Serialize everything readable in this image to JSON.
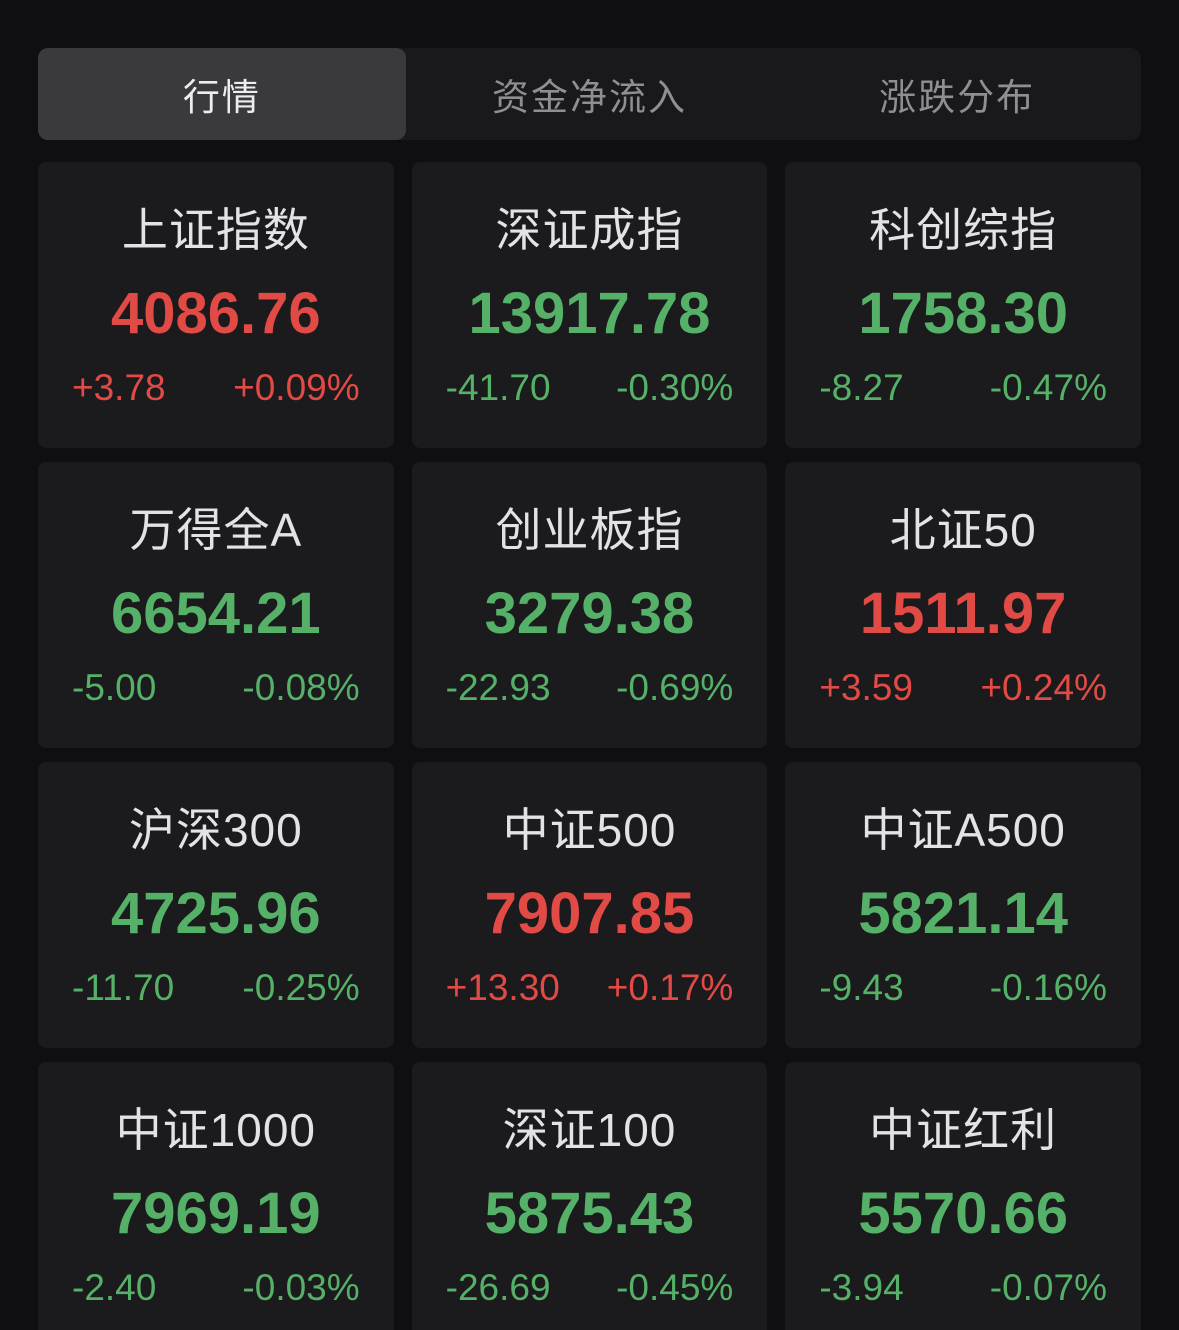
{
  "tabs": [
    {
      "label": "行情",
      "state": "active"
    },
    {
      "label": "资金净流入",
      "state": "inactive"
    },
    {
      "label": "涨跌分布",
      "state": "inactive"
    }
  ],
  "colors": {
    "up": "#e24a45",
    "down": "#56b168",
    "card_background": "#1b1b1d",
    "page_background": "#0f0f11",
    "active_tab_background": "#3a3a3c"
  },
  "cards": [
    {
      "name": "上证指数",
      "value": "4086.76",
      "change": "+3.78",
      "change_pct": "+0.09%",
      "direction": "up"
    },
    {
      "name": "深证成指",
      "value": "13917.78",
      "change": "-41.70",
      "change_pct": "-0.30%",
      "direction": "down"
    },
    {
      "name": "科创综指",
      "value": "1758.30",
      "change": "-8.27",
      "change_pct": "-0.47%",
      "direction": "down"
    },
    {
      "name": "万得全A",
      "value": "6654.21",
      "change": "-5.00",
      "change_pct": "-0.08%",
      "direction": "down"
    },
    {
      "name": "创业板指",
      "value": "3279.38",
      "change": "-22.93",
      "change_pct": "-0.69%",
      "direction": "down"
    },
    {
      "name": "北证50",
      "value": "1511.97",
      "change": "+3.59",
      "change_pct": "+0.24%",
      "direction": "up"
    },
    {
      "name": "沪深300",
      "value": "4725.96",
      "change": "-11.70",
      "change_pct": "-0.25%",
      "direction": "down"
    },
    {
      "name": "中证500",
      "value": "7907.85",
      "change": "+13.30",
      "change_pct": "+0.17%",
      "direction": "up"
    },
    {
      "name": "中证A500",
      "value": "5821.14",
      "change": "-9.43",
      "change_pct": "-0.16%",
      "direction": "down"
    },
    {
      "name": "中证1000",
      "value": "7969.19",
      "change": "-2.40",
      "change_pct": "-0.03%",
      "direction": "down"
    },
    {
      "name": "深证100",
      "value": "5875.43",
      "change": "-26.69",
      "change_pct": "-0.45%",
      "direction": "down"
    },
    {
      "name": "中证红利",
      "value": "5570.66",
      "change": "-3.94",
      "change_pct": "-0.07%",
      "direction": "down"
    }
  ]
}
